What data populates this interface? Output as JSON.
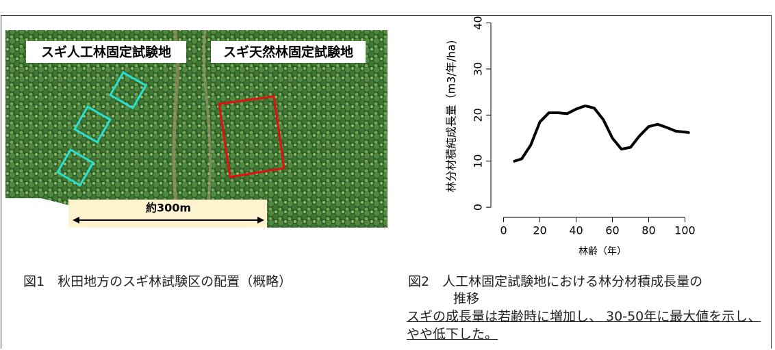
{
  "figure1": {
    "label_left": "スギ人工林固定試験地",
    "label_right": "スギ天然林固定試験地",
    "scale": "約300m",
    "caption": "図1　秋田地方のスギ林試験区の配置（概略）"
  },
  "chart_data": {
    "type": "line",
    "xlabel": "林齢（年）",
    "ylabel": "林分材積純成長量（m3/年/ha)",
    "x": [
      6,
      10,
      15,
      20,
      25,
      30,
      35,
      40,
      45,
      50,
      55,
      60,
      65,
      70,
      75,
      80,
      85,
      90,
      95,
      100,
      102
    ],
    "values": [
      10,
      10.5,
      13.5,
      18.5,
      20.5,
      20.5,
      20.3,
      21.3,
      22,
      21.5,
      19,
      15,
      12.6,
      13,
      15.5,
      17.5,
      18,
      17.3,
      16.5,
      16.3,
      16.2
    ],
    "color": "#000000",
    "xlim": [
      -7,
      107
    ],
    "ylim": [
      -2.2,
      42
    ],
    "xticks": [
      0,
      20,
      40,
      60,
      80,
      100
    ],
    "yticks": [
      0,
      10,
      20,
      30,
      40
    ]
  },
  "figure2": {
    "caption_line1": "図2　人工林固定試験地における林分材積成長量の",
    "caption_line2": "推移",
    "note": "スギの成長量は若齢時に増加し、 30-50年に最大値を示し、やや低下した。"
  }
}
